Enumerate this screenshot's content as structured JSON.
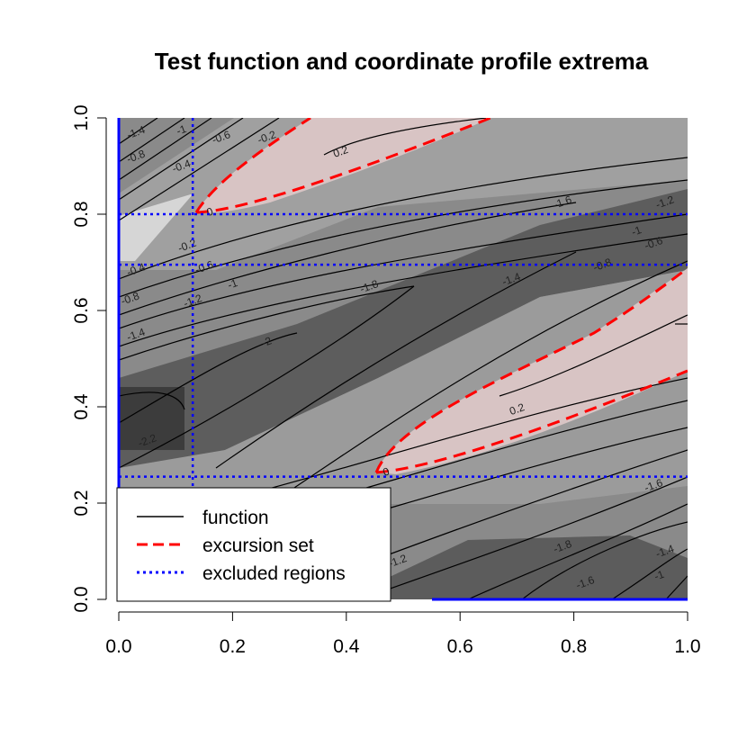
{
  "chart_data": {
    "type": "heatmap",
    "title": "Test function and coordinate profile extrema",
    "xlabel": "",
    "ylabel": "",
    "xlim": [
      0,
      1
    ],
    "ylim": [
      0,
      1
    ],
    "x_ticks": [
      "0.0",
      "0.2",
      "0.4",
      "0.6",
      "0.8",
      "1.0"
    ],
    "y_ticks": [
      "0.0",
      "0.2",
      "0.4",
      "0.6",
      "0.8",
      "1.0"
    ],
    "x_tick_values": [
      0,
      0.2,
      0.4,
      0.6,
      0.8,
      1.0
    ],
    "y_tick_values": [
      0,
      0.2,
      0.4,
      0.6,
      0.8,
      1.0
    ],
    "excluded_regions": {
      "vertical_lines": [
        0.13
      ],
      "horizontal_lines": [
        0.8,
        0.695,
        0.255
      ]
    },
    "excursion_threshold": 0,
    "contour_labels": [
      {
        "text": "-1.4",
        "x": 0.03,
        "y": 0.97
      },
      {
        "text": "-1",
        "x": 0.11,
        "y": 0.975
      },
      {
        "text": "-0.6",
        "x": 0.18,
        "y": 0.96
      },
      {
        "text": "-0.2",
        "x": 0.26,
        "y": 0.96
      },
      {
        "text": "0.2",
        "x": 0.39,
        "y": 0.93
      },
      {
        "text": "-0.8",
        "x": 0.03,
        "y": 0.92
      },
      {
        "text": "-0.4",
        "x": 0.11,
        "y": 0.9
      },
      {
        "text": "0",
        "x": 0.16,
        "y": 0.805
      },
      {
        "text": "-1.6",
        "x": 0.78,
        "y": 0.825
      },
      {
        "text": "-1.2",
        "x": 0.96,
        "y": 0.825
      },
      {
        "text": "-1",
        "x": 0.91,
        "y": 0.765
      },
      {
        "text": "-0.6",
        "x": 0.94,
        "y": 0.74
      },
      {
        "text": "-0.8",
        "x": 0.85,
        "y": 0.695
      },
      {
        "text": "-0.2",
        "x": 0.12,
        "y": 0.735
      },
      {
        "text": "-0.4",
        "x": 0.03,
        "y": 0.685
      },
      {
        "text": "-0.6",
        "x": 0.15,
        "y": 0.69
      },
      {
        "text": "-0.8",
        "x": 0.02,
        "y": 0.625
      },
      {
        "text": "-1",
        "x": 0.2,
        "y": 0.655
      },
      {
        "text": "-1.2",
        "x": 0.13,
        "y": 0.62
      },
      {
        "text": "-1.8",
        "x": 0.44,
        "y": 0.65
      },
      {
        "text": "-1.4",
        "x": 0.03,
        "y": 0.55
      },
      {
        "text": "-1.4",
        "x": 0.69,
        "y": 0.665
      },
      {
        "text": "-2",
        "x": 0.26,
        "y": 0.535
      },
      {
        "text": "0.2",
        "x": 0.7,
        "y": 0.395
      },
      {
        "text": "-2.2",
        "x": 0.05,
        "y": 0.33
      },
      {
        "text": "0",
        "x": 0.47,
        "y": 0.265
      },
      {
        "text": "-1.6",
        "x": 0.94,
        "y": 0.237
      },
      {
        "text": "-1.8",
        "x": 0.78,
        "y": 0.11
      },
      {
        "text": "-1.6",
        "x": 0.82,
        "y": 0.035
      },
      {
        "text": "-1.4",
        "x": 0.96,
        "y": 0.1
      },
      {
        "text": "-1",
        "x": 0.95,
        "y": 0.05
      },
      {
        "text": "-1.2",
        "x": 0.49,
        "y": 0.08
      }
    ],
    "legend": {
      "position": "bottom-left",
      "entries": [
        {
          "label": "function",
          "color": "#000000",
          "style": "solid"
        },
        {
          "label": "excursion set",
          "color": "#ff0000",
          "style": "dashed"
        },
        {
          "label": "excluded regions",
          "color": "#0000ff",
          "style": "dotted"
        }
      ]
    }
  }
}
